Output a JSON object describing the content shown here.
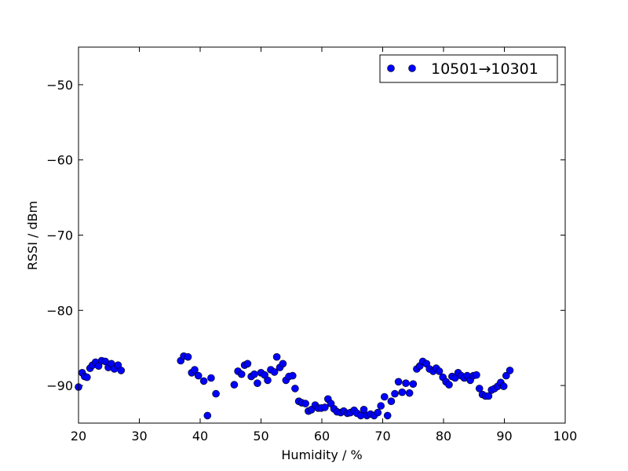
{
  "chart_data": {
    "type": "scatter",
    "xlabel": "Humidity / %",
    "ylabel": "RSSI / dBm",
    "xlim": [
      20,
      100
    ],
    "ylim": [
      -95,
      -45
    ],
    "xticks": [
      "20",
      "30",
      "40",
      "50",
      "60",
      "70",
      "80",
      "90",
      "100"
    ],
    "yticks": [
      "−50",
      "−60",
      "−70",
      "−80",
      "−90"
    ],
    "grid": false,
    "legend_position": "top-right",
    "series": [
      {
        "name": "10501→10301",
        "color": "#0000ff",
        "points": [
          [
            20.0,
            -90.2
          ],
          [
            20.6,
            -88.3
          ],
          [
            21.0,
            -88.8
          ],
          [
            21.4,
            -88.9
          ],
          [
            21.9,
            -87.7
          ],
          [
            22.3,
            -87.3
          ],
          [
            22.8,
            -86.9
          ],
          [
            23.3,
            -87.4
          ],
          [
            23.8,
            -86.7
          ],
          [
            24.4,
            -86.8
          ],
          [
            24.9,
            -87.6
          ],
          [
            25.4,
            -87.1
          ],
          [
            25.9,
            -87.8
          ],
          [
            26.5,
            -87.3
          ],
          [
            27.0,
            -88.0
          ],
          [
            36.8,
            -86.7
          ],
          [
            37.3,
            -86.1
          ],
          [
            38.0,
            -86.2
          ],
          [
            38.6,
            -88.3
          ],
          [
            39.1,
            -87.9
          ],
          [
            39.7,
            -88.7
          ],
          [
            40.6,
            -89.4
          ],
          [
            41.2,
            -94.0
          ],
          [
            41.8,
            -89.0
          ],
          [
            42.6,
            -91.1
          ],
          [
            45.6,
            -89.9
          ],
          [
            46.2,
            -88.1
          ],
          [
            46.8,
            -88.5
          ],
          [
            47.3,
            -87.3
          ],
          [
            47.8,
            -87.1
          ],
          [
            48.4,
            -88.8
          ],
          [
            48.9,
            -88.5
          ],
          [
            49.4,
            -89.7
          ],
          [
            50.0,
            -88.3
          ],
          [
            50.6,
            -88.6
          ],
          [
            51.1,
            -89.3
          ],
          [
            51.6,
            -87.9
          ],
          [
            52.2,
            -88.2
          ],
          [
            52.6,
            -86.2
          ],
          [
            53.1,
            -87.6
          ],
          [
            53.6,
            -87.1
          ],
          [
            54.1,
            -89.3
          ],
          [
            54.6,
            -88.8
          ],
          [
            55.2,
            -88.7
          ],
          [
            55.6,
            -90.4
          ],
          [
            56.2,
            -92.1
          ],
          [
            56.7,
            -92.3
          ],
          [
            57.3,
            -92.4
          ],
          [
            57.8,
            -93.4
          ],
          [
            58.3,
            -93.2
          ],
          [
            58.9,
            -92.6
          ],
          [
            59.4,
            -93.0
          ],
          [
            59.9,
            -93.0
          ],
          [
            60.5,
            -92.9
          ],
          [
            61.0,
            -91.8
          ],
          [
            61.5,
            -92.4
          ],
          [
            62.0,
            -93.1
          ],
          [
            62.5,
            -93.5
          ],
          [
            63.1,
            -93.6
          ],
          [
            63.6,
            -93.4
          ],
          [
            64.2,
            -93.7
          ],
          [
            64.7,
            -93.6
          ],
          [
            65.3,
            -93.3
          ],
          [
            65.8,
            -93.7
          ],
          [
            66.4,
            -94.0
          ],
          [
            66.9,
            -93.2
          ],
          [
            67.4,
            -94.0
          ],
          [
            68.0,
            -93.8
          ],
          [
            68.6,
            -94.0
          ],
          [
            69.2,
            -93.6
          ],
          [
            69.7,
            -92.7
          ],
          [
            70.3,
            -91.5
          ],
          [
            70.8,
            -94.0
          ],
          [
            71.4,
            -92.1
          ],
          [
            72.0,
            -91.1
          ],
          [
            72.6,
            -89.5
          ],
          [
            73.2,
            -90.9
          ],
          [
            73.8,
            -89.7
          ],
          [
            74.4,
            -91.0
          ],
          [
            75.0,
            -89.8
          ],
          [
            75.6,
            -87.8
          ],
          [
            76.1,
            -87.4
          ],
          [
            76.6,
            -86.8
          ],
          [
            77.2,
            -87.1
          ],
          [
            77.7,
            -87.8
          ],
          [
            78.3,
            -88.1
          ],
          [
            78.8,
            -87.7
          ],
          [
            79.3,
            -88.1
          ],
          [
            79.9,
            -88.9
          ],
          [
            80.4,
            -89.5
          ],
          [
            80.9,
            -89.9
          ],
          [
            81.4,
            -88.8
          ],
          [
            81.9,
            -89.0
          ],
          [
            82.4,
            -88.3
          ],
          [
            82.9,
            -88.7
          ],
          [
            83.4,
            -89.0
          ],
          [
            83.9,
            -88.7
          ],
          [
            84.4,
            -89.3
          ],
          [
            84.9,
            -88.7
          ],
          [
            85.4,
            -88.6
          ],
          [
            85.9,
            -90.4
          ],
          [
            86.4,
            -91.2
          ],
          [
            86.9,
            -91.4
          ],
          [
            87.4,
            -91.4
          ],
          [
            87.9,
            -90.6
          ],
          [
            88.4,
            -90.4
          ],
          [
            88.9,
            -90.1
          ],
          [
            89.4,
            -89.6
          ],
          [
            89.9,
            -90.1
          ],
          [
            90.3,
            -88.7
          ],
          [
            90.9,
            -88.0
          ]
        ]
      }
    ]
  }
}
